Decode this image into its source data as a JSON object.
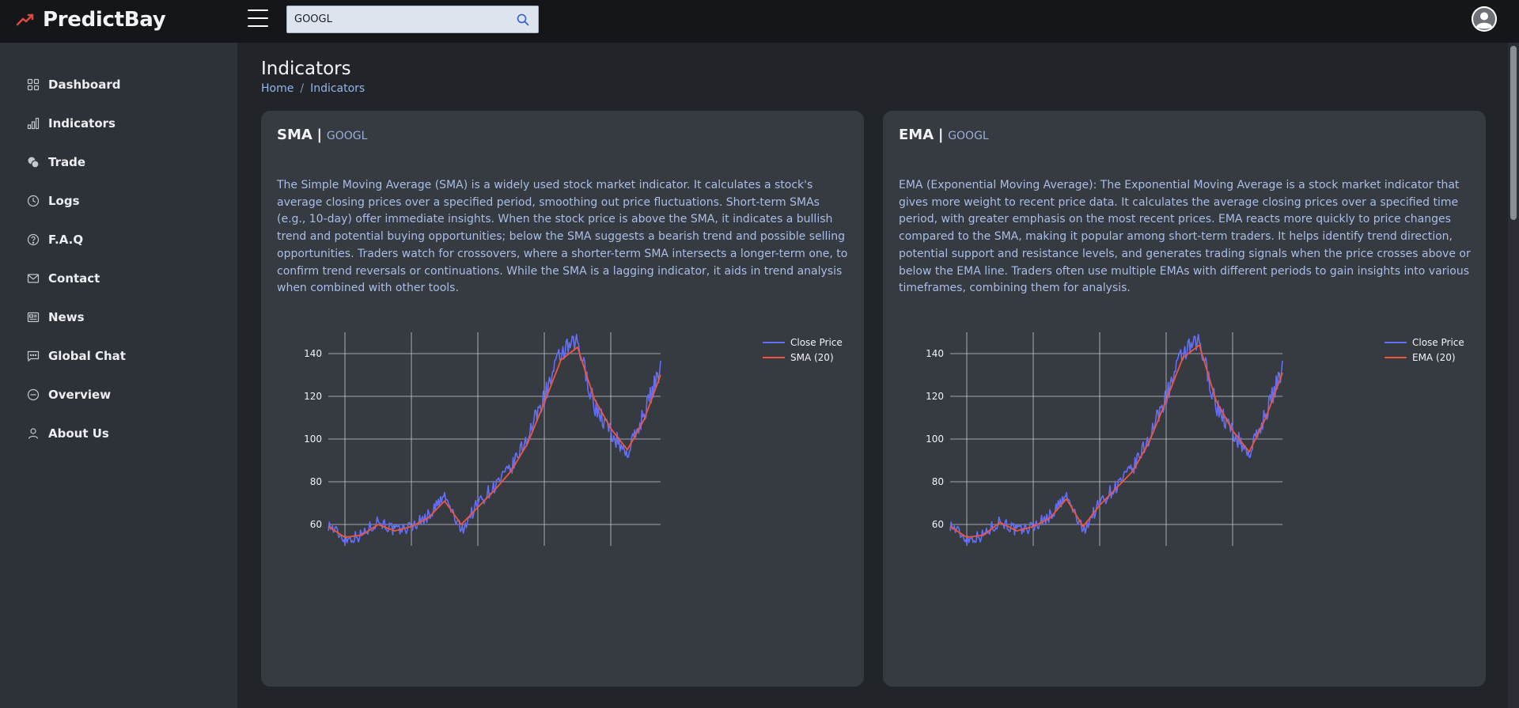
{
  "app": {
    "name": "PredictBay",
    "accent": "#e0473e"
  },
  "search": {
    "value": "GOOGL",
    "placeholder": ""
  },
  "sidebar": {
    "items": [
      {
        "label": "Dashboard",
        "icon": "grid-icon"
      },
      {
        "label": "Indicators",
        "icon": "bar-chart-icon"
      },
      {
        "label": "Trade",
        "icon": "coins-icon"
      },
      {
        "label": "Logs",
        "icon": "clock-icon"
      },
      {
        "label": "F.A.Q",
        "icon": "question-circle-icon"
      },
      {
        "label": "Contact",
        "icon": "envelope-icon"
      },
      {
        "label": "News",
        "icon": "newspaper-icon"
      },
      {
        "label": "Global Chat",
        "icon": "chat-icon"
      },
      {
        "label": "Overview",
        "icon": "minus-circle-icon"
      },
      {
        "label": "About Us",
        "icon": "person-icon"
      }
    ]
  },
  "page": {
    "title": "Indicators",
    "breadcrumb": [
      "Home",
      "Indicators"
    ]
  },
  "cards": [
    {
      "name": "SMA",
      "separator": "|",
      "ticker": "GOOGL",
      "description": "The Simple Moving Average (SMA) is a widely used stock market indicator. It calculates a stock's average closing prices over a specified period, smoothing out price fluctuations. Short-term SMAs (e.g., 10-day) offer immediate insights. When the stock price is above the SMA, it indicates a bullish trend and potential buying opportunities; below the SMA suggests a bearish trend and possible selling opportunities. Traders watch for crossovers, where a shorter-term SMA intersects a longer-term one, to confirm trend reversals or continuations. While the SMA is a lagging indicator, it aids in trend analysis when combined with other tools."
    },
    {
      "name": "EMA",
      "separator": "|",
      "ticker": "GOOGL",
      "description": "EMA (Exponential Moving Average): The Exponential Moving Average is a stock market indicator that gives more weight to recent price data. It calculates the average closing prices over a specified time period, with greater emphasis on the most recent prices. EMA reacts more quickly to price changes compared to the SMA, making it popular among short-term traders. It helps identify trend direction, potential support and resistance levels, and generates trading signals when the price crosses above or below the EMA line. Traders often use multiple EMAs with different periods to gain insights into various timeframes, combining them for analysis."
    }
  ],
  "chart_data": [
    {
      "type": "line",
      "title": "",
      "xlabel": "",
      "ylabel": "",
      "ylim": [
        50,
        150
      ],
      "yticks": [
        60,
        80,
        100,
        120,
        140
      ],
      "grid": true,
      "legend": "top-right",
      "x": [
        0,
        5,
        10,
        15,
        20,
        25,
        30,
        35,
        40,
        45,
        50,
        55,
        60,
        65,
        70,
        75,
        80,
        85,
        90,
        95,
        100
      ],
      "series": [
        {
          "name": "Close Price",
          "color": "#636efa",
          "values": [
            60,
            53,
            55,
            62,
            57,
            59,
            64,
            73,
            57,
            70,
            78,
            86,
            101,
            120,
            140,
            145,
            116,
            103,
            93,
            112,
            133
          ]
        },
        {
          "name": "SMA (20)",
          "color": "#ef553b",
          "values": [
            59,
            54,
            55,
            60,
            57,
            59,
            63,
            71,
            60,
            68,
            76,
            85,
            98,
            117,
            137,
            143,
            119,
            105,
            95,
            109,
            130
          ]
        }
      ]
    },
    {
      "type": "line",
      "title": "",
      "xlabel": "",
      "ylabel": "",
      "ylim": [
        50,
        150
      ],
      "yticks": [
        60,
        80,
        100,
        120,
        140
      ],
      "grid": true,
      "legend": "top-right",
      "x": [
        0,
        5,
        10,
        15,
        20,
        25,
        30,
        35,
        40,
        45,
        50,
        55,
        60,
        65,
        70,
        75,
        80,
        85,
        90,
        95,
        100
      ],
      "series": [
        {
          "name": "Close Price",
          "color": "#636efa",
          "values": [
            60,
            53,
            55,
            62,
            57,
            59,
            64,
            73,
            57,
            70,
            78,
            86,
            101,
            120,
            140,
            145,
            116,
            103,
            93,
            112,
            133
          ]
        },
        {
          "name": "EMA (20)",
          "color": "#ef553b",
          "values": [
            59,
            54,
            55,
            61,
            57,
            59,
            63,
            72,
            59,
            69,
            77,
            85,
            99,
            118,
            138,
            144,
            118,
            104,
            94,
            110,
            131
          ]
        }
      ]
    }
  ]
}
